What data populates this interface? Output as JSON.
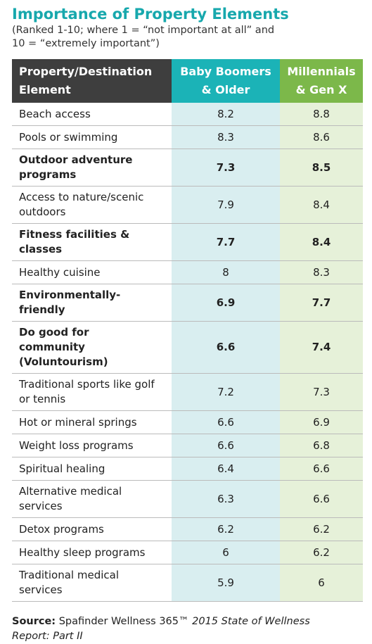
{
  "header": {
    "title": "Importance of Property Elements",
    "subtitle": [
      "(Ranked 1-10; where 1 = “not important at all” and",
      "10 = “extremely important”)"
    ]
  },
  "table": {
    "columns": [
      "Property/Destination Element",
      "Baby Boomers & Older",
      "Millennials & Gen X"
    ],
    "rows": [
      {
        "label": "Beach access",
        "values": [
          8.2,
          8.8
        ],
        "bold": false
      },
      {
        "label": "Pools or swimming",
        "values": [
          8.3,
          8.6
        ],
        "bold": false
      },
      {
        "label": "Outdoor adventure programs",
        "values": [
          7.3,
          8.5
        ],
        "bold": true
      },
      {
        "label": "Access to nature/scenic outdoors",
        "values": [
          7.9,
          8.4
        ],
        "bold": false
      },
      {
        "label": "Fitness facilities & classes",
        "values": [
          7.7,
          8.4
        ],
        "bold": true
      },
      {
        "label": "Healthy cuisine",
        "values": [
          8,
          8.3
        ],
        "bold": false
      },
      {
        "label": "Environmentally-friendly",
        "values": [
          6.9,
          7.7
        ],
        "bold": true
      },
      {
        "label": "Do good for community (Voluntourism)",
        "values": [
          6.6,
          7.4
        ],
        "bold": true
      },
      {
        "label": "Traditional sports like golf or tennis",
        "values": [
          7.2,
          7.3
        ],
        "bold": false
      },
      {
        "label": "Hot or mineral springs",
        "values": [
          6.6,
          6.9
        ],
        "bold": false
      },
      {
        "label": "Weight loss programs",
        "values": [
          6.6,
          6.8
        ],
        "bold": false
      },
      {
        "label": "Spiritual healing",
        "values": [
          6.4,
          6.6
        ],
        "bold": false
      },
      {
        "label": "Alternative medical services",
        "values": [
          6.3,
          6.6
        ],
        "bold": false
      },
      {
        "label": "Detox programs",
        "values": [
          6.2,
          6.2
        ],
        "bold": false
      },
      {
        "label": "Healthy sleep programs",
        "values": [
          6,
          6.2
        ],
        "bold": false
      },
      {
        "label": "Traditional medical services",
        "values": [
          5.9,
          6
        ],
        "bold": false
      }
    ]
  },
  "source": {
    "label": "Source:",
    "text": "Spafinder Wellness 365™",
    "report": "2015 State of Wellness Report: Part II"
  }
}
